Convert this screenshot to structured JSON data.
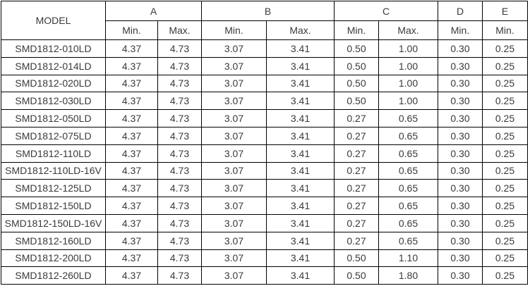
{
  "table": {
    "headers": {
      "model": "MODEL",
      "groups": [
        "A",
        "B",
        "C",
        "D",
        "E"
      ],
      "sub": [
        "Min.",
        "Max.",
        "Min.",
        "Max.",
        "Min.",
        "Max.",
        "Min.",
        "Min."
      ]
    },
    "rows": [
      [
        "SMD1812-010LD",
        "4.37",
        "4.73",
        "3.07",
        "3.41",
        "0.50",
        "1.00",
        "0.30",
        "0.25"
      ],
      [
        "SMD1812-014LD",
        "4.37",
        "4.73",
        "3.07",
        "3.41",
        "0.50",
        "1.00",
        "0.30",
        "0.25"
      ],
      [
        "SMD1812-020LD",
        "4.37",
        "4.73",
        "3.07",
        "3.41",
        "0.50",
        "1.00",
        "0.30",
        "0.25"
      ],
      [
        "SMD1812-030LD",
        "4.37",
        "4.73",
        "3.07",
        "3.41",
        "0.50",
        "1.00",
        "0.30",
        "0.25"
      ],
      [
        "SMD1812-050LD",
        "4.37",
        "4.73",
        "3.07",
        "3.41",
        "0.27",
        "0.65",
        "0.30",
        "0.25"
      ],
      [
        "SMD1812-075LD",
        "4.37",
        "4.73",
        "3.07",
        "3.41",
        "0.27",
        "0.65",
        "0.30",
        "0.25"
      ],
      [
        "SMD1812-110LD",
        "4.37",
        "4.73",
        "3.07",
        "3.41",
        "0.27",
        "0.65",
        "0.30",
        "0.25"
      ],
      [
        "SMD1812-110LD-16V",
        "4.37",
        "4.73",
        "3.07",
        "3.41",
        "0.27",
        "0.65",
        "0.30",
        "0.25"
      ],
      [
        "SMD1812-125LD",
        "4.37",
        "4.73",
        "3.07",
        "3.41",
        "0.27",
        "0.65",
        "0.30",
        "0.25"
      ],
      [
        "SMD1812-150LD",
        "4.37",
        "4.73",
        "3.07",
        "3.41",
        "0.27",
        "0.65",
        "0.30",
        "0.25"
      ],
      [
        "SMD1812-150LD-16V",
        "4.37",
        "4.73",
        "3.07",
        "3.41",
        "0.27",
        "0.65",
        "0.30",
        "0.25"
      ],
      [
        "SMD1812-160LD",
        "4.37",
        "4.73",
        "3.07",
        "3.41",
        "0.27",
        "0.65",
        "0.30",
        "0.25"
      ],
      [
        "SMD1812-200LD",
        "4.37",
        "4.73",
        "3.07",
        "3.41",
        "0.50",
        "1.10",
        "0.30",
        "0.25"
      ],
      [
        "SMD1812-260LD",
        "4.37",
        "4.73",
        "3.07",
        "3.41",
        "0.50",
        "1.80",
        "0.30",
        "0.25"
      ]
    ]
  },
  "colors": {
    "border": "#000000",
    "text": "#3a3a3a",
    "background": "#ffffff"
  }
}
